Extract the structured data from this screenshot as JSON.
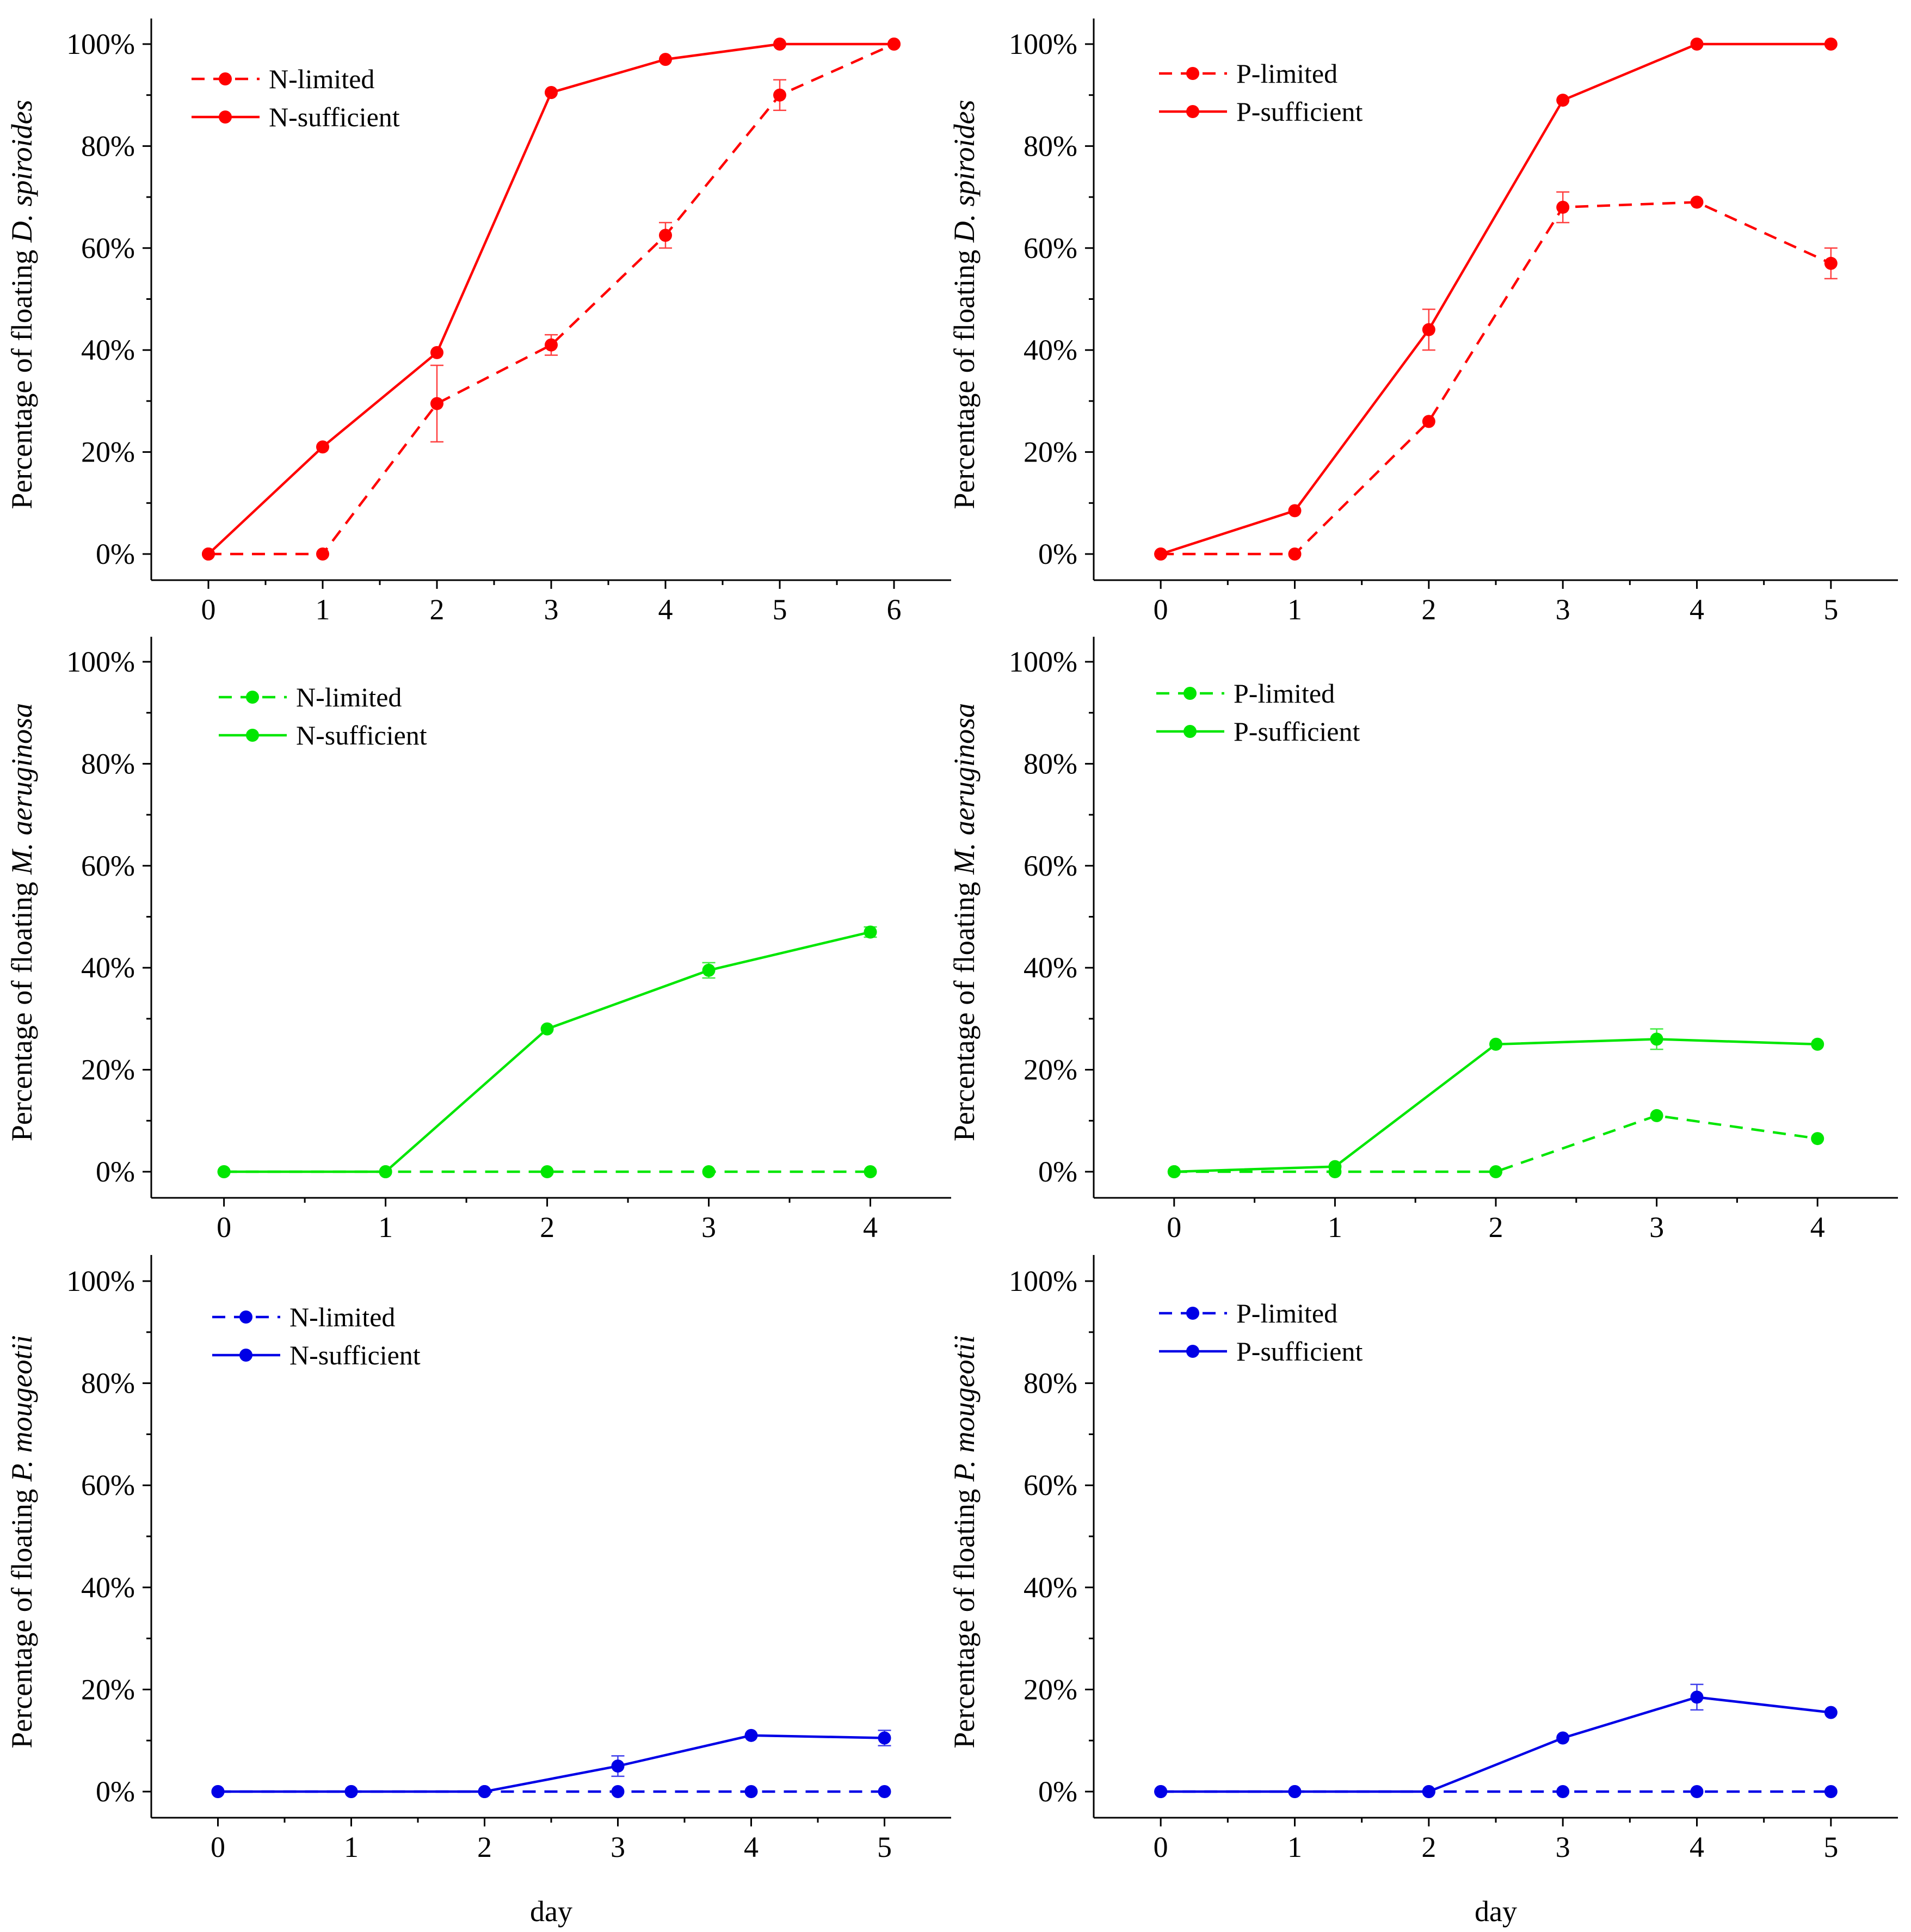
{
  "figure": {
    "shared_xlabel": "day",
    "y_tick_labels": [
      "0%",
      "20%",
      "40%",
      "60%",
      "80%",
      "100%"
    ]
  },
  "chart_data": [
    {
      "type": "line",
      "ylabel_prefix": "Percentage of floating ",
      "ylabel_species": "D. spiroides",
      "xlabel": "",
      "x": [
        0,
        1,
        2,
        3,
        4,
        5,
        6
      ],
      "xlim": [
        -0.5,
        6.5
      ],
      "ylim": [
        -5,
        105
      ],
      "color": "#ff0000",
      "legend_position": "top-left",
      "series": [
        {
          "name": "N-limited",
          "style": "dashed",
          "values": [
            0,
            0,
            29.5,
            41,
            62.5,
            90,
            100
          ],
          "errors": [
            0,
            0,
            7.5,
            2,
            2.5,
            3,
            0
          ]
        },
        {
          "name": "N-sufficient",
          "style": "solid",
          "values": [
            0,
            21,
            39.5,
            90.5,
            97,
            100,
            100
          ],
          "errors": [
            0,
            0,
            0,
            0,
            0,
            0,
            0
          ]
        }
      ]
    },
    {
      "type": "line",
      "ylabel_prefix": "Percentage of floating ",
      "ylabel_species": "D. spiroides",
      "xlabel": "",
      "x": [
        0,
        1,
        2,
        3,
        4,
        5
      ],
      "xlim": [
        -0.5,
        5.5
      ],
      "ylim": [
        -5,
        105
      ],
      "color": "#ff0000",
      "legend_position": "top-left",
      "series": [
        {
          "name": "P-limited",
          "style": "dashed",
          "values": [
            0,
            0,
            26,
            68,
            69,
            57
          ],
          "errors": [
            0,
            0,
            0,
            3,
            0,
            3
          ]
        },
        {
          "name": "P-sufficient",
          "style": "solid",
          "values": [
            0,
            8.5,
            44,
            89,
            100,
            100
          ],
          "errors": [
            0,
            0,
            4,
            0,
            0,
            0
          ]
        }
      ]
    },
    {
      "type": "line",
      "ylabel_prefix": "Percentage of floating ",
      "ylabel_species": "M. aeruginosa",
      "xlabel": "",
      "x": [
        0,
        1,
        2,
        3,
        4
      ],
      "xlim": [
        -0.45,
        4.5
      ],
      "ylim": [
        -5,
        105
      ],
      "color": "#00e600",
      "legend_position": "top-left",
      "series": [
        {
          "name": "N-limited",
          "style": "dashed",
          "values": [
            0,
            0,
            0,
            0,
            0
          ],
          "errors": [
            0,
            0,
            0,
            0,
            0
          ]
        },
        {
          "name": "N-sufficient",
          "style": "solid",
          "values": [
            0,
            0,
            28,
            39.5,
            47
          ],
          "errors": [
            0,
            0,
            0,
            1.5,
            1
          ]
        }
      ]
    },
    {
      "type": "line",
      "ylabel_prefix": "Percentage of floating ",
      "ylabel_species": "M. aeruginosa",
      "xlabel": "",
      "x": [
        0,
        1,
        2,
        3,
        4
      ],
      "xlim": [
        -0.5,
        4.5
      ],
      "ylim": [
        -5,
        105
      ],
      "color": "#00e600",
      "legend_position": "top-left",
      "series": [
        {
          "name": "P-limited",
          "style": "dashed",
          "values": [
            0,
            0,
            0,
            11,
            6.5
          ],
          "errors": [
            0,
            0,
            0,
            0,
            0
          ]
        },
        {
          "name": "P-sufficient",
          "style": "solid",
          "values": [
            0,
            1,
            25,
            26,
            25
          ],
          "errors": [
            0,
            0,
            0,
            2,
            0
          ]
        }
      ]
    },
    {
      "type": "line",
      "ylabel_prefix": "Percentage of floating ",
      "ylabel_species": "P. mougeotii",
      "xlabel": "day",
      "x": [
        0,
        1,
        2,
        3,
        4,
        5
      ],
      "xlim": [
        -0.5,
        5.5
      ],
      "ylim": [
        -5,
        105
      ],
      "color": "#0000e6",
      "legend_position": "top-left",
      "series": [
        {
          "name": "N-limited",
          "style": "dashed",
          "values": [
            0,
            0,
            0,
            0,
            0,
            0
          ],
          "errors": [
            0,
            0,
            0,
            0,
            0,
            0
          ]
        },
        {
          "name": "N-sufficient",
          "style": "solid",
          "values": [
            0,
            0,
            0,
            5,
            11,
            10.5
          ],
          "errors": [
            0,
            0,
            0,
            2,
            0,
            1.5
          ]
        }
      ]
    },
    {
      "type": "line",
      "ylabel_prefix": "Percentage of floating ",
      "ylabel_species": "P. mougeotii",
      "xlabel": "day",
      "x": [
        0,
        1,
        2,
        3,
        4,
        5
      ],
      "xlim": [
        -0.5,
        5.5
      ],
      "ylim": [
        -5,
        105
      ],
      "color": "#0000e6",
      "legend_position": "top-left",
      "series": [
        {
          "name": "P-limited",
          "style": "dashed",
          "values": [
            0,
            0,
            0,
            0,
            0,
            0
          ],
          "errors": [
            0,
            0,
            0,
            0,
            0,
            0
          ]
        },
        {
          "name": "P-sufficient",
          "style": "solid",
          "values": [
            0,
            0,
            0,
            10.5,
            18.5,
            15.5
          ],
          "errors": [
            0,
            0,
            0,
            0,
            2.5,
            0
          ]
        }
      ]
    }
  ]
}
